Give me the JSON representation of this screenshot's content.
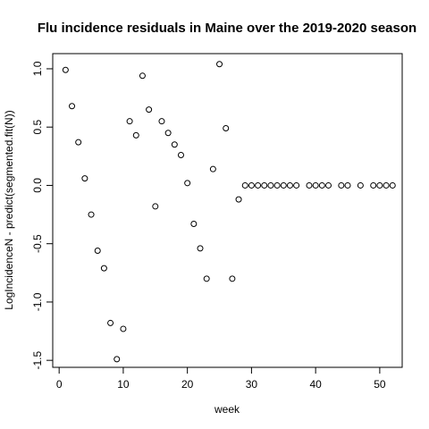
{
  "chart_data": {
    "type": "scatter",
    "title": "Flu incidence residuals in Maine over the 2019-2020 season",
    "xlabel": "week",
    "ylabel": "LogIncidenceN - predict(segmented.fit(N))",
    "xlim": [
      -1,
      53.5
    ],
    "ylim": [
      -1.56,
      1.13
    ],
    "xticks": [
      0,
      10,
      20,
      30,
      40,
      50
    ],
    "yticks": [
      -1.5,
      -1.0,
      -0.5,
      0.0,
      0.5,
      1.0
    ],
    "ytick_labels": [
      "-1.5",
      "-1.0",
      "-0.5",
      "0.0",
      "0.5",
      "1.0"
    ],
    "grid": false,
    "marker": "open-circle",
    "x": [
      1,
      2,
      3,
      4,
      5,
      6,
      7,
      8,
      9,
      10,
      11,
      12,
      13,
      14,
      15,
      16,
      17,
      18,
      19,
      20,
      21,
      22,
      23,
      24,
      25,
      26,
      27,
      28,
      29,
      30,
      31,
      32,
      33,
      34,
      35,
      36,
      37,
      39,
      40,
      41,
      42,
      44,
      45,
      47,
      49,
      50,
      51,
      52
    ],
    "y": [
      0.99,
      0.68,
      0.37,
      0.06,
      -0.25,
      -0.56,
      -0.71,
      -1.18,
      -1.49,
      -1.23,
      0.55,
      0.43,
      0.94,
      0.65,
      -0.18,
      0.55,
      0.45,
      0.35,
      0.26,
      0.02,
      -0.33,
      -0.54,
      -0.8,
      0.14,
      1.04,
      0.49,
      -0.8,
      -0.12,
      0,
      0,
      0,
      0,
      0,
      0,
      0,
      0,
      0,
      0,
      0,
      0,
      0,
      0,
      0,
      0,
      0,
      0,
      0,
      0
    ]
  }
}
